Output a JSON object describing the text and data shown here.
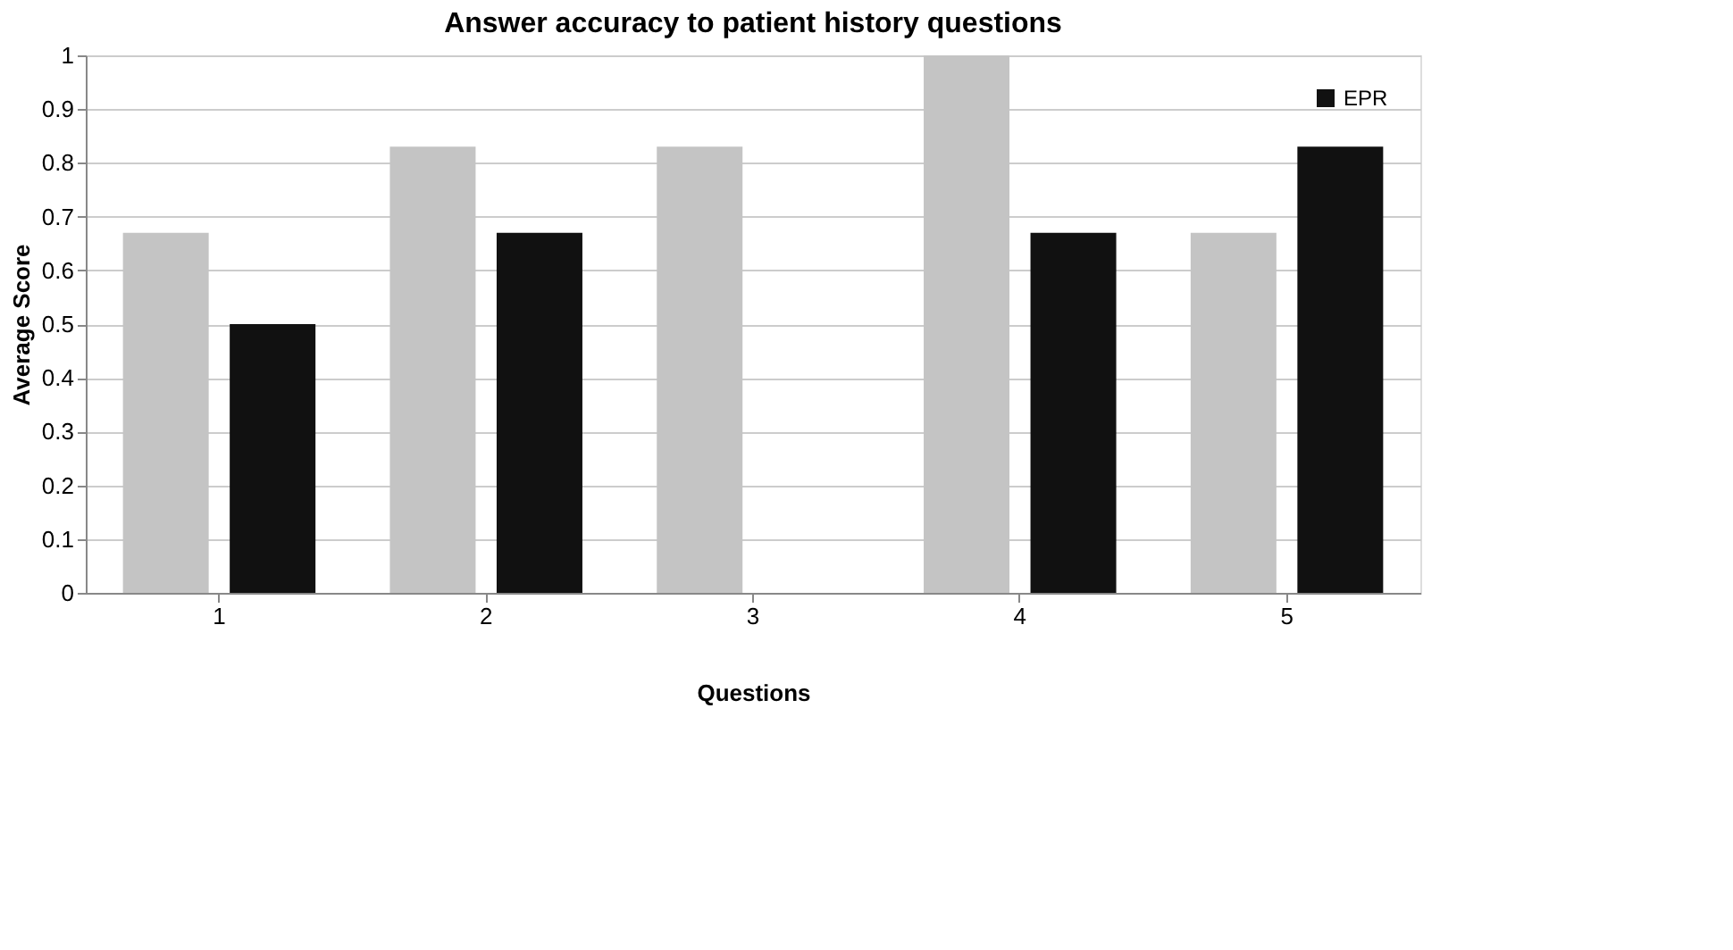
{
  "chart_data": {
    "type": "bar",
    "title": "Answer accuracy to patient history questions",
    "xlabel": "Questions",
    "ylabel": "Average Score",
    "categories": [
      "1",
      "2",
      "3",
      "4",
      "5"
    ],
    "series": [
      {
        "color": "#c4c4c4",
        "values": [
          0.67,
          0.83,
          0.83,
          1.0,
          0.67
        ]
      },
      {
        "name": "EPR",
        "color": "#111111",
        "values": [
          0.5,
          0.67,
          0,
          0.67,
          0.83
        ]
      }
    ],
    "ylim": [
      0,
      1
    ],
    "yticks": [
      0,
      0.1,
      0.2,
      0.3,
      0.4,
      0.5,
      0.6,
      0.7,
      0.8,
      0.9,
      1
    ],
    "grid": "y",
    "legend": "top right"
  }
}
